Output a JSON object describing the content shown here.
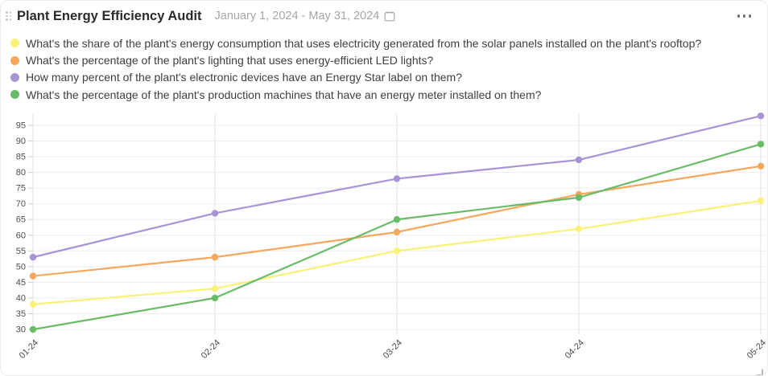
{
  "header": {
    "title": "Plant Energy Efficiency Audit",
    "date_range": "January 1, 2024 - May 31, 2024"
  },
  "icons": {
    "drag_handle": "dot-grid",
    "calendar": "calendar-outline",
    "more_options": "horizontal-ellipsis",
    "resize": "corner-bracket"
  },
  "colors": {
    "title_text": "#2a2a2a",
    "muted_text": "#a6a6a6",
    "legend_text": "#3e3e3e",
    "axis_text": "#4d4d4d",
    "grid_horizontal": "#ededed",
    "grid_vertical": "#e0e0e0",
    "tick": "#cccccc",
    "series_yellow": "#faf278",
    "series_orange": "#f5a75c",
    "series_purple": "#a894d5",
    "series_green": "#69bc67"
  },
  "chart_data": {
    "type": "line",
    "title": "Plant Energy Efficiency Audit",
    "categories": [
      "01-24",
      "02-24",
      "03-24",
      "04-24",
      "05-24"
    ],
    "series": [
      {
        "name": "What's the share of the plant's energy consumption that uses electricity generated from the solar panels installed on the plant's rooftop?",
        "color": "#faf278",
        "values": [
          38,
          43,
          55,
          62,
          71
        ]
      },
      {
        "name": "What's the percentage of the plant's lighting that uses energy-efficient LED lights?",
        "color": "#f5a75c",
        "values": [
          47,
          53,
          61,
          73,
          82
        ]
      },
      {
        "name": "How many percent of the plant's electronic devices have an Energy Star label on them?",
        "color": "#a894d5",
        "values": [
          53,
          67,
          78,
          84,
          98
        ]
      },
      {
        "name": "What's the percentage of the plant's production machines that have an energy meter installed on them?",
        "color": "#69bc67",
        "values": [
          30,
          40,
          65,
          72,
          89
        ]
      }
    ],
    "xlabel": "",
    "ylabel": "",
    "yticks": [
      30,
      35,
      40,
      45,
      50,
      55,
      60,
      65,
      70,
      75,
      80,
      85,
      90,
      95
    ],
    "ylim": [
      28,
      99
    ],
    "grid": true,
    "legend_position": "top",
    "x_tick_rotation": -45
  }
}
